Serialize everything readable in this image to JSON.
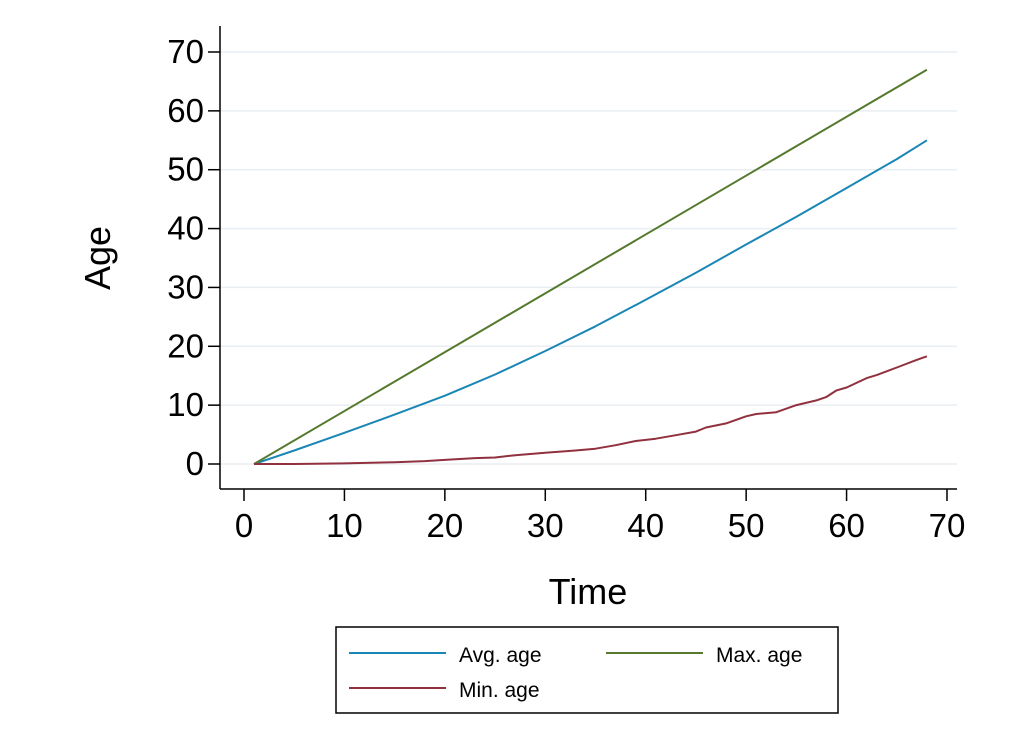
{
  "chart_data": {
    "type": "line",
    "title": "",
    "xlabel": "Time",
    "ylabel": "Age",
    "xlim": [
      0,
      70
    ],
    "ylim": [
      -4.5,
      74
    ],
    "xticks": [
      0,
      10,
      20,
      30,
      40,
      50,
      60,
      70
    ],
    "yticks": [
      0,
      10,
      20,
      30,
      40,
      50,
      60,
      70
    ],
    "grid": "horizontal",
    "legend_position": "bottom",
    "series": [
      {
        "name": "Avg. age",
        "color": "#1a86b5",
        "x": [
          1,
          5,
          10,
          15,
          20,
          25,
          30,
          35,
          40,
          45,
          50,
          55,
          60,
          65,
          68
        ],
        "y": [
          0,
          2.3,
          5.3,
          8.4,
          11.6,
          15.2,
          19.2,
          23.4,
          27.9,
          32.5,
          37.3,
          42.0,
          46.9,
          51.8,
          55.0
        ]
      },
      {
        "name": "Max. age",
        "color": "#557a2e",
        "x": [
          1,
          68
        ],
        "y": [
          0,
          67
        ]
      },
      {
        "name": "Min. age",
        "color": "#91313f",
        "x": [
          1,
          5,
          10,
          15,
          18,
          20,
          23,
          25,
          27,
          30,
          33,
          35,
          37,
          39,
          41,
          43,
          45,
          46,
          48,
          50,
          51,
          53,
          55,
          57,
          58,
          59,
          60,
          62,
          63,
          65,
          67,
          68
        ],
        "y": [
          0,
          0,
          0.1,
          0.3,
          0.5,
          0.7,
          1.0,
          1.1,
          1.5,
          1.9,
          2.3,
          2.6,
          3.2,
          3.9,
          4.3,
          4.9,
          5.5,
          6.2,
          6.9,
          8.1,
          8.5,
          8.8,
          10.0,
          10.8,
          11.4,
          12.5,
          13.0,
          14.6,
          15.1,
          16.4,
          17.7,
          18.3
        ]
      }
    ],
    "legend": {
      "entries": [
        "Avg. age",
        "Max. age",
        "Min. age"
      ]
    }
  }
}
